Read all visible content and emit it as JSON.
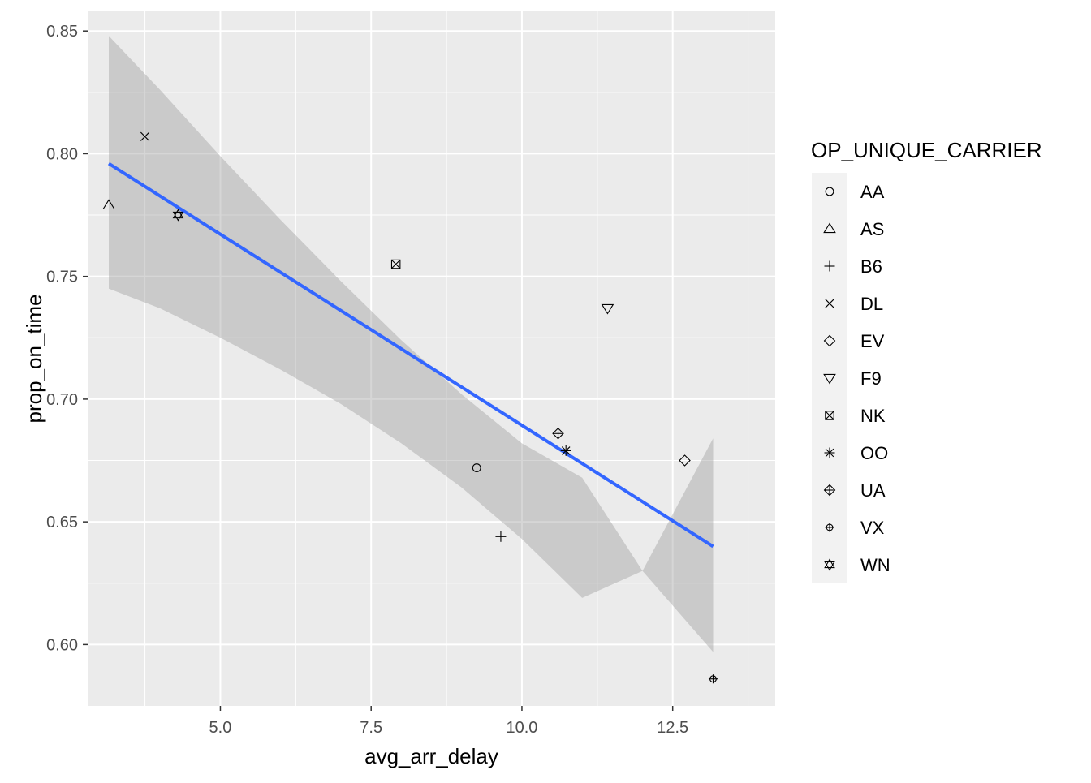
{
  "chart_data": {
    "type": "scatter",
    "xlabel": "avg_arr_delay",
    "ylabel": "prop_on_time",
    "xlim": [
      2.8,
      14.2
    ],
    "ylim": [
      0.575,
      0.858
    ],
    "x_ticks": [
      5.0,
      7.5,
      10.0,
      12.5
    ],
    "x_tick_labels": [
      "5.0",
      "7.5",
      "10.0",
      "12.5"
    ],
    "y_ticks": [
      0.6,
      0.65,
      0.7,
      0.75,
      0.8,
      0.85
    ],
    "y_tick_labels": [
      "0.60",
      "0.65",
      "0.70",
      "0.75",
      "0.80",
      "0.85"
    ],
    "grid": true,
    "legend": {
      "title": "OP_UNIQUE_CARRIER",
      "position": "right",
      "entries": [
        {
          "label": "AA",
          "shape": "circle"
        },
        {
          "label": "AS",
          "shape": "triangle-up"
        },
        {
          "label": "B6",
          "shape": "plus"
        },
        {
          "label": "DL",
          "shape": "cross"
        },
        {
          "label": "EV",
          "shape": "diamond"
        },
        {
          "label": "F9",
          "shape": "triangle-down"
        },
        {
          "label": "NK",
          "shape": "square-cross"
        },
        {
          "label": "OO",
          "shape": "asterisk"
        },
        {
          "label": "UA",
          "shape": "diamond-plus"
        },
        {
          "label": "VX",
          "shape": "circle-plus"
        },
        {
          "label": "WN",
          "shape": "star-of-david"
        }
      ]
    },
    "points": [
      {
        "carrier": "AA",
        "x": 9.25,
        "y": 0.672
      },
      {
        "carrier": "AS",
        "x": 3.15,
        "y": 0.779
      },
      {
        "carrier": "B6",
        "x": 9.65,
        "y": 0.644
      },
      {
        "carrier": "DL",
        "x": 3.75,
        "y": 0.807
      },
      {
        "carrier": "EV",
        "x": 12.7,
        "y": 0.675
      },
      {
        "carrier": "F9",
        "x": 11.42,
        "y": 0.737
      },
      {
        "carrier": "NK",
        "x": 7.91,
        "y": 0.755
      },
      {
        "carrier": "OO",
        "x": 10.73,
        "y": 0.679
      },
      {
        "carrier": "UA",
        "x": 10.6,
        "y": 0.686
      },
      {
        "carrier": "VX",
        "x": 13.17,
        "y": 0.586
      },
      {
        "carrier": "WN",
        "x": 4.3,
        "y": 0.775
      }
    ],
    "smooth": {
      "method": "lm",
      "color": "#3366FF",
      "line": [
        [
          3.15,
          0.796
        ],
        [
          13.17,
          0.64
        ]
      ],
      "ribbon_x": [
        3.15,
        4.0,
        5.0,
        6.0,
        7.0,
        8.0,
        9.0,
        10.0,
        11.0,
        12.0,
        13.17
      ],
      "ribbon_lower": [
        0.745,
        0.737,
        0.725,
        0.712,
        0.698,
        0.682,
        0.664,
        0.643,
        0.619,
        0.63,
        0.597
      ],
      "ribbon_upper": [
        0.848,
        0.826,
        0.799,
        0.773,
        0.748,
        0.724,
        0.702,
        0.682,
        0.668,
        0.63,
        0.684
      ],
      "ribbon_color": "#999999"
    },
    "panel_background": "#EBEBEB",
    "grid_color": "#FFFFFF"
  }
}
